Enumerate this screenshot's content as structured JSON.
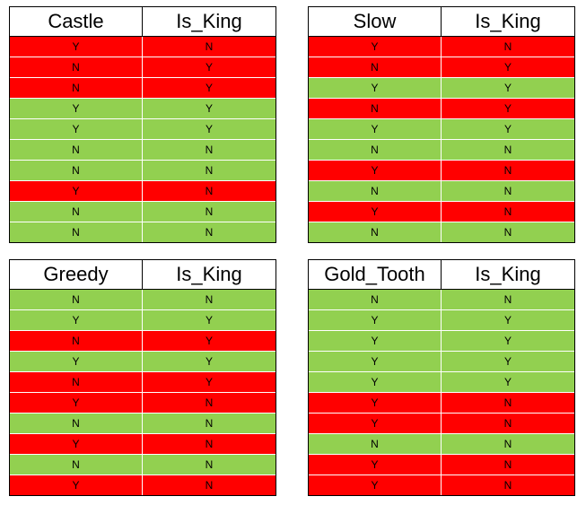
{
  "colors": {
    "mismatch": "#ff0000",
    "match": "#92d050"
  },
  "tables": [
    {
      "feature": "Castle",
      "target": "Is_King",
      "rows": [
        {
          "feature": "Y",
          "target": "N",
          "color": "red"
        },
        {
          "feature": "N",
          "target": "Y",
          "color": "red"
        },
        {
          "feature": "N",
          "target": "Y",
          "color": "red"
        },
        {
          "feature": "Y",
          "target": "Y",
          "color": "green"
        },
        {
          "feature": "Y",
          "target": "Y",
          "color": "green"
        },
        {
          "feature": "N",
          "target": "N",
          "color": "green"
        },
        {
          "feature": "N",
          "target": "N",
          "color": "green"
        },
        {
          "feature": "Y",
          "target": "N",
          "color": "red"
        },
        {
          "feature": "N",
          "target": "N",
          "color": "green"
        },
        {
          "feature": "N",
          "target": "N",
          "color": "green"
        }
      ]
    },
    {
      "feature": "Slow",
      "target": "Is_King",
      "rows": [
        {
          "feature": "Y",
          "target": "N",
          "color": "red"
        },
        {
          "feature": "N",
          "target": "Y",
          "color": "red"
        },
        {
          "feature": "Y",
          "target": "Y",
          "color": "green"
        },
        {
          "feature": "N",
          "target": "Y",
          "color": "red"
        },
        {
          "feature": "Y",
          "target": "Y",
          "color": "green"
        },
        {
          "feature": "N",
          "target": "N",
          "color": "green"
        },
        {
          "feature": "Y",
          "target": "N",
          "color": "red"
        },
        {
          "feature": "N",
          "target": "N",
          "color": "green"
        },
        {
          "feature": "Y",
          "target": "N",
          "color": "red"
        },
        {
          "feature": "N",
          "target": "N",
          "color": "green"
        }
      ]
    },
    {
      "feature": "Greedy",
      "target": "Is_King",
      "rows": [
        {
          "feature": "N",
          "target": "N",
          "color": "green"
        },
        {
          "feature": "Y",
          "target": "Y",
          "color": "green"
        },
        {
          "feature": "N",
          "target": "Y",
          "color": "red"
        },
        {
          "feature": "Y",
          "target": "Y",
          "color": "green"
        },
        {
          "feature": "N",
          "target": "Y",
          "color": "red"
        },
        {
          "feature": "Y",
          "target": "N",
          "color": "red"
        },
        {
          "feature": "N",
          "target": "N",
          "color": "green"
        },
        {
          "feature": "Y",
          "target": "N",
          "color": "red"
        },
        {
          "feature": "N",
          "target": "N",
          "color": "green"
        },
        {
          "feature": "Y",
          "target": "N",
          "color": "red"
        }
      ]
    },
    {
      "feature": "Gold_Tooth",
      "target": "Is_King",
      "rows": [
        {
          "feature": "N",
          "target": "N",
          "color": "green"
        },
        {
          "feature": "Y",
          "target": "Y",
          "color": "green"
        },
        {
          "feature": "Y",
          "target": "Y",
          "color": "green"
        },
        {
          "feature": "Y",
          "target": "Y",
          "color": "green"
        },
        {
          "feature": "Y",
          "target": "Y",
          "color": "green"
        },
        {
          "feature": "Y",
          "target": "N",
          "color": "red"
        },
        {
          "feature": "Y",
          "target": "N",
          "color": "red"
        },
        {
          "feature": "N",
          "target": "N",
          "color": "green"
        },
        {
          "feature": "Y",
          "target": "N",
          "color": "red"
        },
        {
          "feature": "Y",
          "target": "N",
          "color": "red"
        }
      ]
    }
  ]
}
